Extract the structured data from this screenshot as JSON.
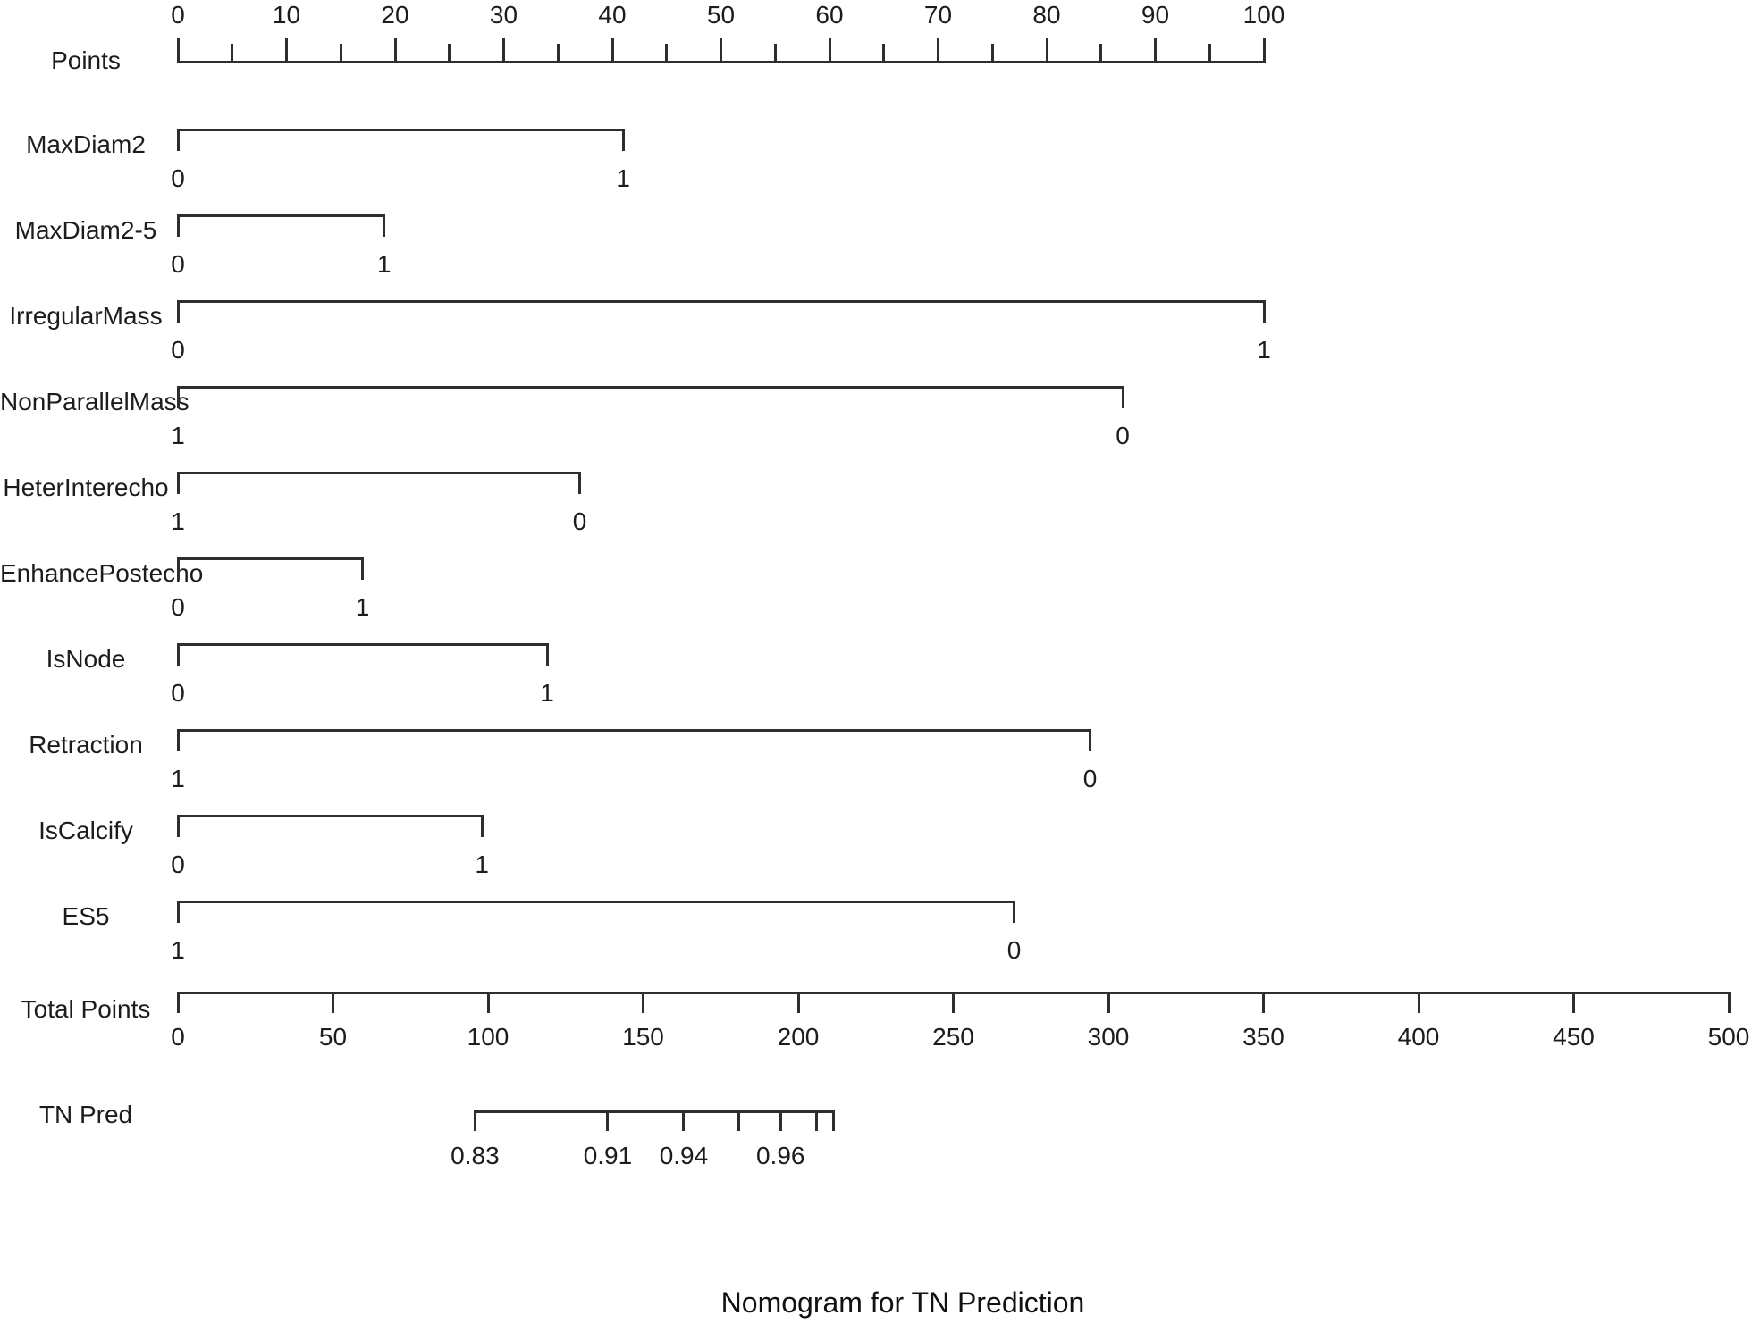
{
  "title": "Nomogram for TN Prediction",
  "line_color": "#2e2e2e",
  "text_color": "#1c1c1c",
  "chart_data": {
    "type": "nomogram",
    "title": "Nomogram for TN Prediction",
    "points_axis": {
      "label": "Points",
      "range": [
        0,
        100
      ],
      "major_tick_step": 10,
      "minor_tick_step": 5,
      "tick_labels": [
        "0",
        "10",
        "20",
        "30",
        "40",
        "50",
        "60",
        "70",
        "80",
        "90",
        "100"
      ]
    },
    "variables": [
      {
        "name": "MaxDiam2",
        "levels": [
          {
            "label": "0",
            "points": 0
          },
          {
            "label": "1",
            "points": 41
          }
        ]
      },
      {
        "name": "MaxDiam2-5",
        "levels": [
          {
            "label": "0",
            "points": 0
          },
          {
            "label": "1",
            "points": 19
          }
        ]
      },
      {
        "name": "IrregularMass",
        "levels": [
          {
            "label": "0",
            "points": 0
          },
          {
            "label": "1",
            "points": 100
          }
        ]
      },
      {
        "name": "NonParallelMass",
        "levels": [
          {
            "label": "1",
            "points": 0
          },
          {
            "label": "0",
            "points": 87
          }
        ]
      },
      {
        "name": "HeterInterecho",
        "levels": [
          {
            "label": "1",
            "points": 0
          },
          {
            "label": "0",
            "points": 37
          }
        ]
      },
      {
        "name": "EnhancePostecho",
        "levels": [
          {
            "label": "0",
            "points": 0
          },
          {
            "label": "1",
            "points": 17
          }
        ]
      },
      {
        "name": "IsNode",
        "levels": [
          {
            "label": "0",
            "points": 0
          },
          {
            "label": "1",
            "points": 34
          }
        ]
      },
      {
        "name": "Retraction",
        "levels": [
          {
            "label": "1",
            "points": 0
          },
          {
            "label": "0",
            "points": 84
          }
        ]
      },
      {
        "name": "IsCalcify",
        "levels": [
          {
            "label": "0",
            "points": 0
          },
          {
            "label": "1",
            "points": 28
          }
        ]
      },
      {
        "name": "ES5",
        "levels": [
          {
            "label": "1",
            "points": 0
          },
          {
            "label": "0",
            "points": 77
          }
        ]
      }
    ],
    "total_points_axis": {
      "label": "Total Points",
      "range": [
        0,
        500
      ],
      "tick_step": 50,
      "tick_labels": [
        "0",
        "50",
        "100",
        "150",
        "200",
        "250",
        "300",
        "350",
        "400",
        "450",
        "500"
      ]
    },
    "prediction_axis": {
      "label": "TN Pred",
      "axis_units": "total_points",
      "ticks": [
        {
          "pos": 95.8,
          "label": "0.83"
        },
        {
          "pos": 138.6,
          "label": "0.91"
        },
        {
          "pos": 163.1,
          "label": "0.94"
        },
        {
          "pos": 180.7,
          "label": ""
        },
        {
          "pos": 194.3,
          "label": "0.96"
        },
        {
          "pos": 205.8,
          "label": ""
        },
        {
          "pos": 211.5,
          "label": ""
        }
      ]
    }
  }
}
